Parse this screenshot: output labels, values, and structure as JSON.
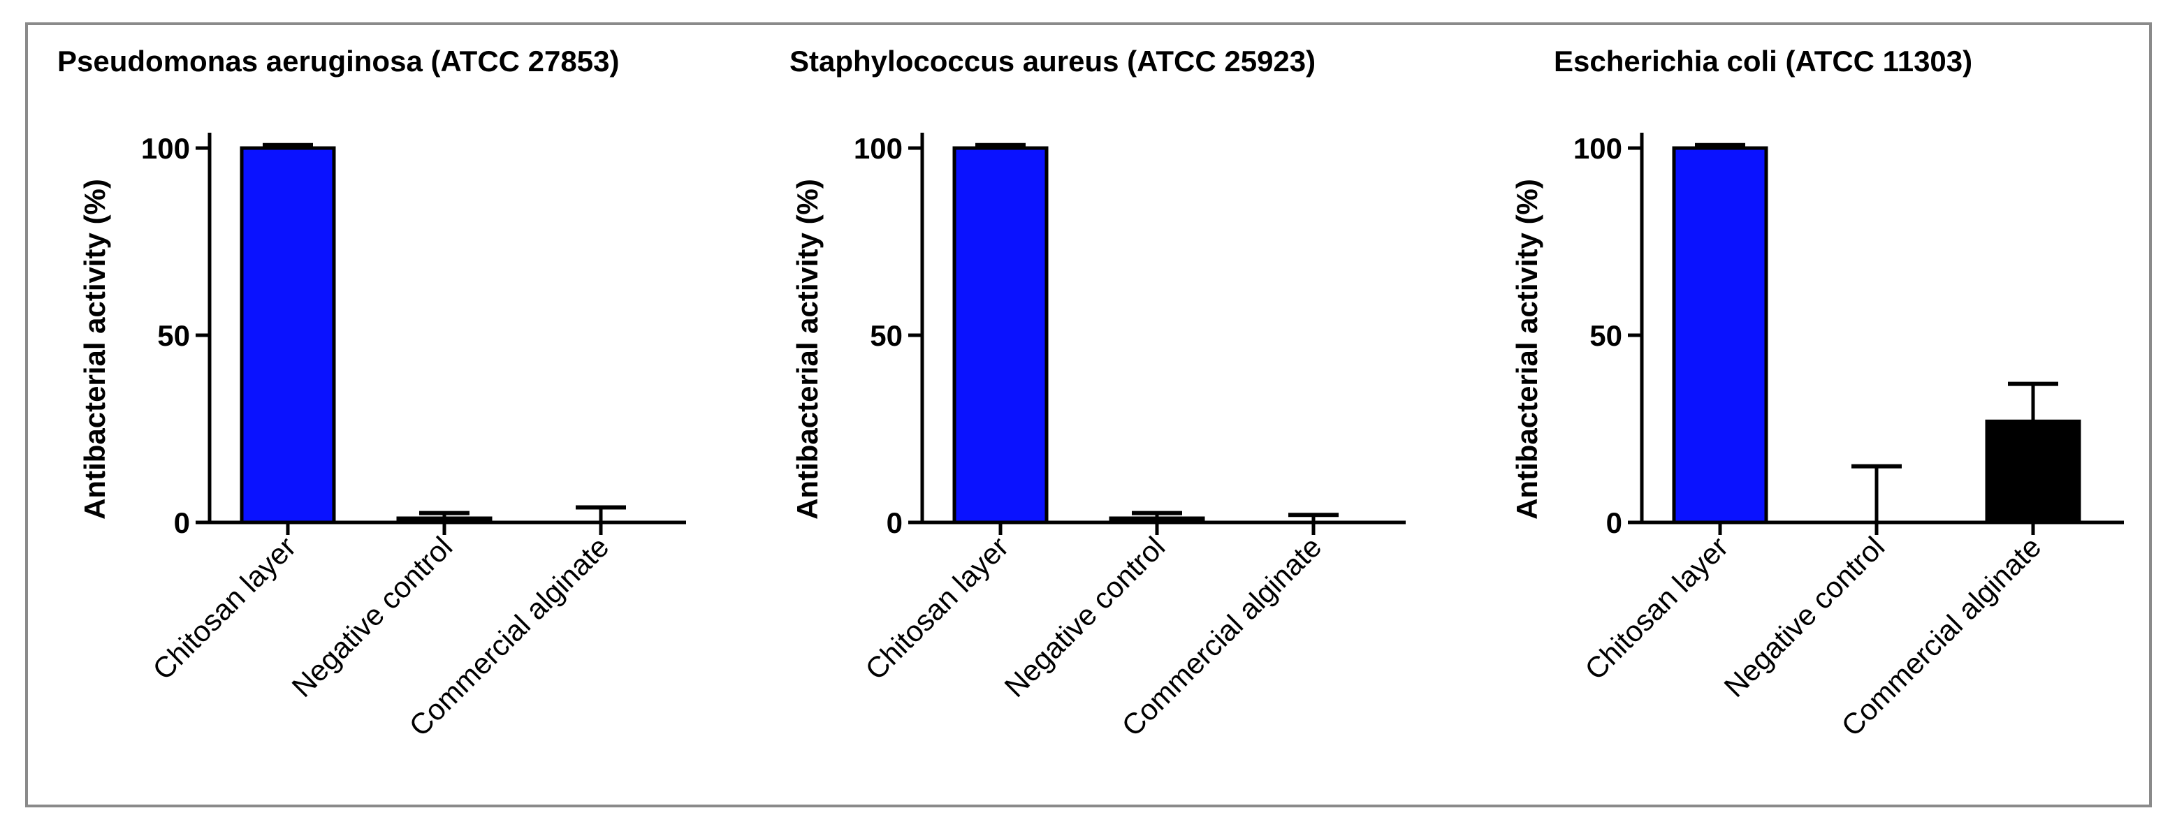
{
  "chart_data": [
    {
      "type": "bar",
      "title": "Pseudomonas aeruginosa (ATCC 27853)",
      "ylabel": "Antibacterial activity (%)",
      "xlabel": "",
      "categories": [
        "Chitosan layer",
        "Negative control",
        "Commercial alginate"
      ],
      "values": [
        100,
        1,
        0
      ],
      "error": [
        0.8,
        1.5,
        4
      ],
      "bar_colors": [
        "#0a12ff",
        "#000000",
        "#000000"
      ],
      "ylim": [
        0,
        100
      ],
      "yticks": [
        0,
        50,
        100
      ],
      "grid": false,
      "legend": "none"
    },
    {
      "type": "bar",
      "title": "Staphylococcus aureus (ATCC 25923)",
      "ylabel": "Antibacterial activity (%)",
      "xlabel": "",
      "categories": [
        "Chitosan layer",
        "Negative control",
        "Commercial alginate"
      ],
      "values": [
        100,
        1,
        0
      ],
      "error": [
        0.8,
        1.5,
        2
      ],
      "bar_colors": [
        "#0a12ff",
        "#000000",
        "#000000"
      ],
      "ylim": [
        0,
        100
      ],
      "yticks": [
        0,
        50,
        100
      ],
      "grid": false,
      "legend": "none"
    },
    {
      "type": "bar",
      "title": "Escherichia coli (ATCC 11303)",
      "ylabel": "Antibacterial activity (%)",
      "xlabel": "",
      "categories": [
        "Chitosan layer",
        "Negative control",
        "Commercial alginate"
      ],
      "values": [
        100,
        0,
        27
      ],
      "error": [
        0.8,
        15,
        10
      ],
      "bar_colors": [
        "#0a12ff",
        "#000000",
        "#000000"
      ],
      "ylim": [
        0,
        100
      ],
      "yticks": [
        0,
        50,
        100
      ],
      "grid": false,
      "legend": "none"
    }
  ]
}
